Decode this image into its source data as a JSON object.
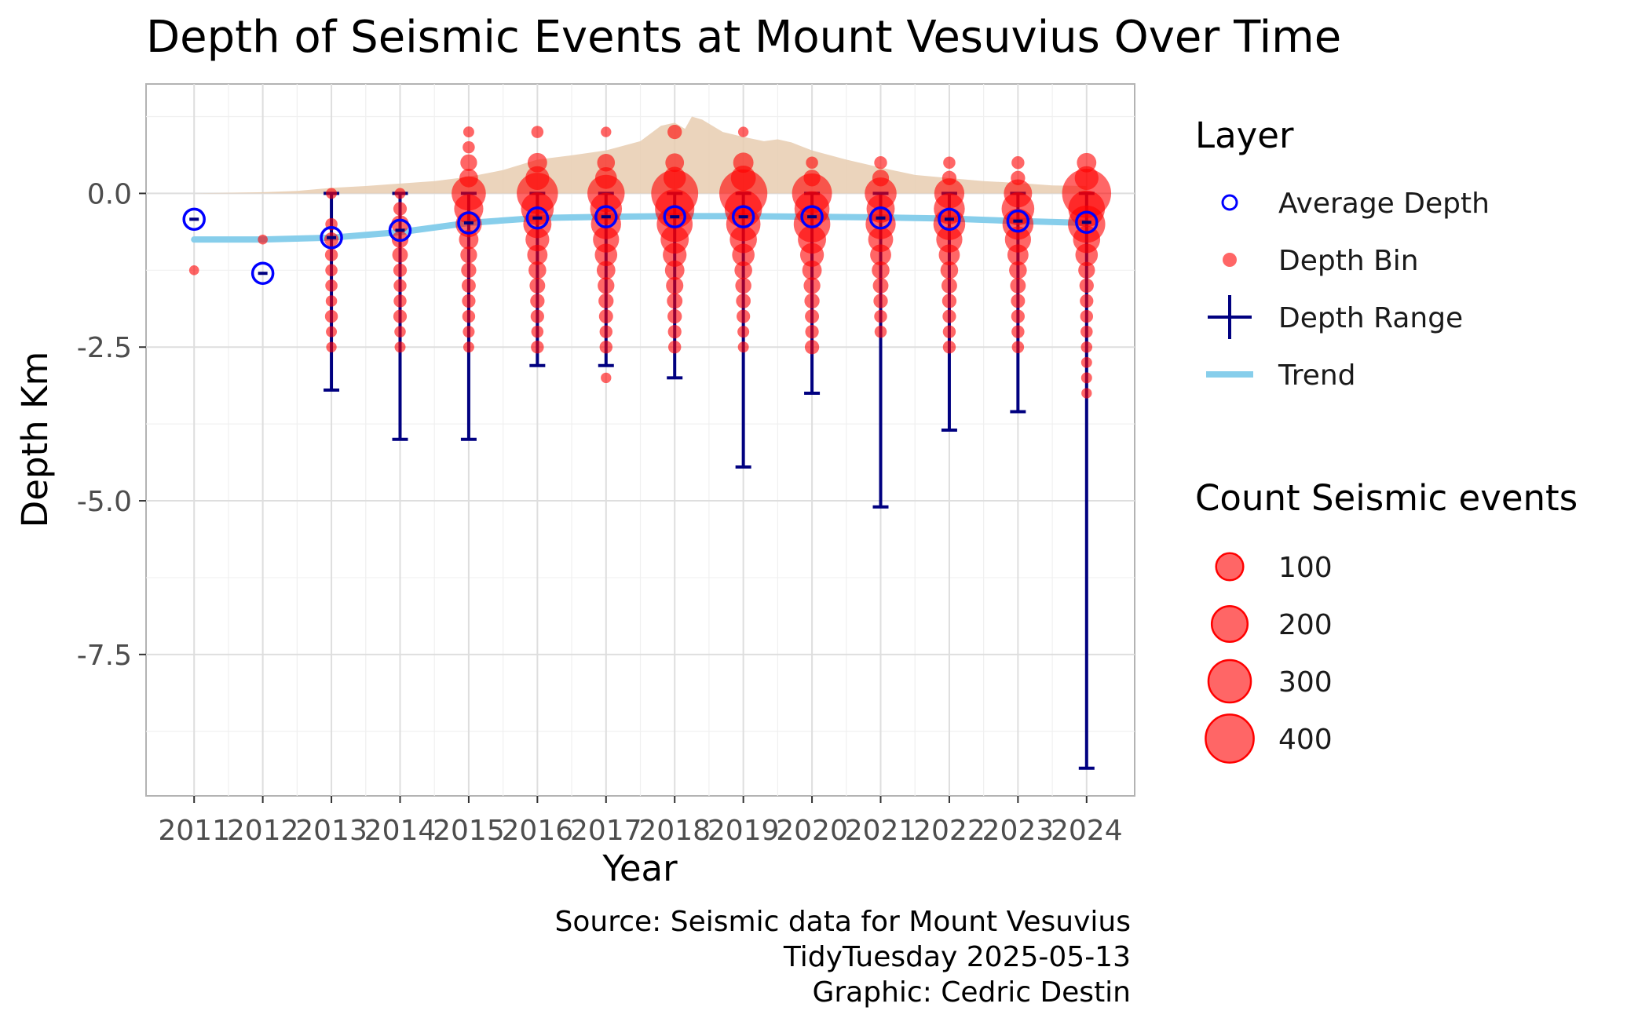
{
  "chart_data": {
    "type": "scatter",
    "title": "Depth of Seismic Events at Mount Vesuvius Over Time",
    "xlabel": "Year",
    "ylabel": "Depth Km",
    "xlim": [
      2010.3,
      2024.7
    ],
    "ylim": [
      -9.8,
      1.78
    ],
    "x_ticks": [
      2011,
      2012,
      2013,
      2014,
      2015,
      2016,
      2017,
      2018,
      2019,
      2020,
      2021,
      2022,
      2023,
      2024
    ],
    "y_ticks": [
      0.0,
      -2.5,
      -5.0,
      -7.5
    ],
    "y_tick_labels": [
      "0.0",
      "-2.5",
      "-5.0",
      "-7.5"
    ],
    "grid": true,
    "colors": {
      "average": "#0000ff",
      "bin": "#ff0000",
      "range": "#000080",
      "trend": "#87ceeb",
      "density": "#e8cdb0"
    },
    "legend_position": "right",
    "layer_legend": {
      "title": "Layer",
      "items": [
        {
          "label": "Average Depth",
          "kind": "average"
        },
        {
          "label": "Depth Bin",
          "kind": "bin"
        },
        {
          "label": "Depth Range",
          "kind": "range"
        },
        {
          "label": "Trend",
          "kind": "trend"
        }
      ]
    },
    "size_legend": {
      "title": "Count Seismic events",
      "values": [
        100,
        200,
        300,
        400
      ],
      "labels": [
        "100",
        "200",
        "300",
        "400"
      ]
    },
    "caption": [
      "Source: Seismic data for Mount Vesuvius",
      "TidyTuesday 2025-05-13",
      "Graphic: Cedric Destin"
    ],
    "depth_range": [
      {
        "year": 2013,
        "min": -3.2,
        "max": 0.0
      },
      {
        "year": 2014,
        "min": -4.0,
        "max": 0.0
      },
      {
        "year": 2015,
        "min": -4.0,
        "max": 0.0
      },
      {
        "year": 2016,
        "min": -2.8,
        "max": 0.0
      },
      {
        "year": 2017,
        "min": -2.8,
        "max": 0.0
      },
      {
        "year": 2018,
        "min": -3.0,
        "max": 0.0
      },
      {
        "year": 2019,
        "min": -4.45,
        "max": 0.0
      },
      {
        "year": 2020,
        "min": -3.25,
        "max": 0.0
      },
      {
        "year": 2021,
        "min": -5.1,
        "max": 0.0
      },
      {
        "year": 2022,
        "min": -3.85,
        "max": 0.0
      },
      {
        "year": 2023,
        "min": -3.55,
        "max": 0.0
      },
      {
        "year": 2024,
        "min": -9.35,
        "max": 0.0
      }
    ],
    "average_depth": [
      {
        "year": 2011,
        "depth": -0.42
      },
      {
        "year": 2012,
        "depth": -1.3
      },
      {
        "year": 2013,
        "depth": -0.72
      },
      {
        "year": 2014,
        "depth": -0.6
      },
      {
        "year": 2015,
        "depth": -0.48
      },
      {
        "year": 2016,
        "depth": -0.4
      },
      {
        "year": 2017,
        "depth": -0.38
      },
      {
        "year": 2018,
        "depth": -0.38
      },
      {
        "year": 2019,
        "depth": -0.38
      },
      {
        "year": 2020,
        "depth": -0.38
      },
      {
        "year": 2021,
        "depth": -0.4
      },
      {
        "year": 2022,
        "depth": -0.42
      },
      {
        "year": 2023,
        "depth": -0.45
      },
      {
        "year": 2024,
        "depth": -0.47
      }
    ],
    "trend": [
      {
        "year": 2011,
        "depth": -0.75
      },
      {
        "year": 2012,
        "depth": -0.75
      },
      {
        "year": 2013,
        "depth": -0.72
      },
      {
        "year": 2014,
        "depth": -0.63
      },
      {
        "year": 2015,
        "depth": -0.48
      },
      {
        "year": 2016,
        "depth": -0.4
      },
      {
        "year": 2017,
        "depth": -0.38
      },
      {
        "year": 2018,
        "depth": -0.37
      },
      {
        "year": 2019,
        "depth": -0.37
      },
      {
        "year": 2020,
        "depth": -0.38
      },
      {
        "year": 2021,
        "depth": -0.39
      },
      {
        "year": 2022,
        "depth": -0.41
      },
      {
        "year": 2023,
        "depth": -0.45
      },
      {
        "year": 2024,
        "depth": -0.48
      }
    ],
    "density_profile": [
      {
        "year": 2011,
        "height": 0.0
      },
      {
        "year": 2012,
        "height": 0.02
      },
      {
        "year": 2012.5,
        "height": 0.04
      },
      {
        "year": 2013,
        "height": 0.09
      },
      {
        "year": 2013.5,
        "height": 0.12
      },
      {
        "year": 2014,
        "height": 0.16
      },
      {
        "year": 2014.5,
        "height": 0.2
      },
      {
        "year": 2015,
        "height": 0.27
      },
      {
        "year": 2015.5,
        "height": 0.38
      },
      {
        "year": 2016,
        "height": 0.55
      },
      {
        "year": 2016.5,
        "height": 0.62
      },
      {
        "year": 2017,
        "height": 0.7
      },
      {
        "year": 2017.5,
        "height": 0.85
      },
      {
        "year": 2017.8,
        "height": 1.1
      },
      {
        "year": 2018,
        "height": 1.15
      },
      {
        "year": 2018.15,
        "height": 1.05
      },
      {
        "year": 2018.25,
        "height": 1.25
      },
      {
        "year": 2018.4,
        "height": 1.2
      },
      {
        "year": 2018.7,
        "height": 1.0
      },
      {
        "year": 2019,
        "height": 0.92
      },
      {
        "year": 2019.3,
        "height": 0.85
      },
      {
        "year": 2019.5,
        "height": 0.88
      },
      {
        "year": 2019.7,
        "height": 0.83
      },
      {
        "year": 2020,
        "height": 0.7
      },
      {
        "year": 2020.5,
        "height": 0.55
      },
      {
        "year": 2021,
        "height": 0.42
      },
      {
        "year": 2021.5,
        "height": 0.3
      },
      {
        "year": 2022,
        "height": 0.25
      },
      {
        "year": 2022.5,
        "height": 0.2
      },
      {
        "year": 2023,
        "height": 0.17
      },
      {
        "year": 2023.5,
        "height": 0.13
      },
      {
        "year": 2024,
        "height": 0.12
      }
    ],
    "depth_bins": [
      {
        "year": 2011,
        "depth": -1.25,
        "count": 3
      },
      {
        "year": 2012,
        "depth": -0.75,
        "count": 3
      },
      {
        "year": 2013,
        "depth": 0.0,
        "count": 5
      },
      {
        "year": 2013,
        "depth": -0.5,
        "count": 8
      },
      {
        "year": 2013,
        "depth": -0.75,
        "count": 15
      },
      {
        "year": 2013,
        "depth": -1.0,
        "count": 10
      },
      {
        "year": 2013,
        "depth": -1.25,
        "count": 8
      },
      {
        "year": 2013,
        "depth": -1.5,
        "count": 8
      },
      {
        "year": 2013,
        "depth": -1.75,
        "count": 6
      },
      {
        "year": 2013,
        "depth": -2.0,
        "count": 10
      },
      {
        "year": 2013,
        "depth": -2.25,
        "count": 5
      },
      {
        "year": 2013,
        "depth": -2.5,
        "count": 4
      },
      {
        "year": 2014,
        "depth": 0.0,
        "count": 5
      },
      {
        "year": 2014,
        "depth": -0.25,
        "count": 12
      },
      {
        "year": 2014,
        "depth": -0.5,
        "count": 30
      },
      {
        "year": 2014,
        "depth": -0.75,
        "count": 25
      },
      {
        "year": 2014,
        "depth": -1.0,
        "count": 20
      },
      {
        "year": 2014,
        "depth": -1.25,
        "count": 12
      },
      {
        "year": 2014,
        "depth": -1.5,
        "count": 10
      },
      {
        "year": 2014,
        "depth": -1.75,
        "count": 10
      },
      {
        "year": 2014,
        "depth": -2.0,
        "count": 12
      },
      {
        "year": 2014,
        "depth": -2.25,
        "count": 6
      },
      {
        "year": 2014,
        "depth": -2.5,
        "count": 5
      },
      {
        "year": 2015,
        "depth": 1.0,
        "count": 5
      },
      {
        "year": 2015,
        "depth": 0.75,
        "count": 8
      },
      {
        "year": 2015,
        "depth": 0.5,
        "count": 25
      },
      {
        "year": 2015,
        "depth": 0.25,
        "count": 35
      },
      {
        "year": 2015,
        "depth": 0.0,
        "count": 180
      },
      {
        "year": 2015,
        "depth": -0.25,
        "count": 120
      },
      {
        "year": 2015,
        "depth": -0.5,
        "count": 90
      },
      {
        "year": 2015,
        "depth": -0.75,
        "count": 40
      },
      {
        "year": 2015,
        "depth": -1.0,
        "count": 25
      },
      {
        "year": 2015,
        "depth": -1.25,
        "count": 18
      },
      {
        "year": 2015,
        "depth": -1.5,
        "count": 14
      },
      {
        "year": 2015,
        "depth": -1.75,
        "count": 12
      },
      {
        "year": 2015,
        "depth": -2.0,
        "count": 10
      },
      {
        "year": 2015,
        "depth": -2.25,
        "count": 7
      },
      {
        "year": 2015,
        "depth": -2.5,
        "count": 5
      },
      {
        "year": 2016,
        "depth": 1.0,
        "count": 8
      },
      {
        "year": 2016,
        "depth": 0.5,
        "count": 40
      },
      {
        "year": 2016,
        "depth": 0.25,
        "count": 70
      },
      {
        "year": 2016,
        "depth": 0.0,
        "count": 280
      },
      {
        "year": 2016,
        "depth": -0.25,
        "count": 160
      },
      {
        "year": 2016,
        "depth": -0.5,
        "count": 110
      },
      {
        "year": 2016,
        "depth": -0.75,
        "count": 70
      },
      {
        "year": 2016,
        "depth": -1.0,
        "count": 45
      },
      {
        "year": 2016,
        "depth": -1.25,
        "count": 30
      },
      {
        "year": 2016,
        "depth": -1.5,
        "count": 20
      },
      {
        "year": 2016,
        "depth": -1.75,
        "count": 15
      },
      {
        "year": 2016,
        "depth": -2.0,
        "count": 12
      },
      {
        "year": 2016,
        "depth": -2.25,
        "count": 8
      },
      {
        "year": 2016,
        "depth": -2.5,
        "count": 10
      },
      {
        "year": 2017,
        "depth": 1.0,
        "count": 4
      },
      {
        "year": 2017,
        "depth": 0.5,
        "count": 30
      },
      {
        "year": 2017,
        "depth": 0.25,
        "count": 55
      },
      {
        "year": 2017,
        "depth": 0.0,
        "count": 220
      },
      {
        "year": 2017,
        "depth": -0.25,
        "count": 150
      },
      {
        "year": 2017,
        "depth": -0.5,
        "count": 130
      },
      {
        "year": 2017,
        "depth": -0.75,
        "count": 90
      },
      {
        "year": 2017,
        "depth": -1.0,
        "count": 60
      },
      {
        "year": 2017,
        "depth": -1.25,
        "count": 35
      },
      {
        "year": 2017,
        "depth": -1.5,
        "count": 25
      },
      {
        "year": 2017,
        "depth": -1.75,
        "count": 18
      },
      {
        "year": 2017,
        "depth": -2.0,
        "count": 14
      },
      {
        "year": 2017,
        "depth": -2.25,
        "count": 10
      },
      {
        "year": 2017,
        "depth": -2.5,
        "count": 10
      },
      {
        "year": 2017,
        "depth": -3.0,
        "count": 4
      },
      {
        "year": 2018,
        "depth": 1.0,
        "count": 15
      },
      {
        "year": 2018,
        "depth": 0.5,
        "count": 35
      },
      {
        "year": 2018,
        "depth": 0.25,
        "count": 60
      },
      {
        "year": 2018,
        "depth": 0.0,
        "count": 380
      },
      {
        "year": 2018,
        "depth": -0.25,
        "count": 250
      },
      {
        "year": 2018,
        "depth": -0.5,
        "count": 200
      },
      {
        "year": 2018,
        "depth": -0.75,
        "count": 110
      },
      {
        "year": 2018,
        "depth": -1.0,
        "count": 70
      },
      {
        "year": 2018,
        "depth": -1.25,
        "count": 40
      },
      {
        "year": 2018,
        "depth": -1.5,
        "count": 28
      },
      {
        "year": 2018,
        "depth": -1.75,
        "count": 20
      },
      {
        "year": 2018,
        "depth": -2.0,
        "count": 15
      },
      {
        "year": 2018,
        "depth": -2.25,
        "count": 12
      },
      {
        "year": 2018,
        "depth": -2.5,
        "count": 10
      },
      {
        "year": 2019,
        "depth": 1.0,
        "count": 4
      },
      {
        "year": 2019,
        "depth": 0.5,
        "count": 45
      },
      {
        "year": 2019,
        "depth": 0.25,
        "count": 80
      },
      {
        "year": 2019,
        "depth": 0.0,
        "count": 400
      },
      {
        "year": 2019,
        "depth": -0.25,
        "count": 220
      },
      {
        "year": 2019,
        "depth": -0.5,
        "count": 180
      },
      {
        "year": 2019,
        "depth": -0.75,
        "count": 100
      },
      {
        "year": 2019,
        "depth": -1.0,
        "count": 60
      },
      {
        "year": 2019,
        "depth": -1.25,
        "count": 30
      },
      {
        "year": 2019,
        "depth": -1.5,
        "count": 22
      },
      {
        "year": 2019,
        "depth": -1.75,
        "count": 16
      },
      {
        "year": 2019,
        "depth": -2.0,
        "count": 12
      },
      {
        "year": 2019,
        "depth": -2.25,
        "count": 7
      },
      {
        "year": 2019,
        "depth": -2.5,
        "count": 5
      },
      {
        "year": 2020,
        "depth": 0.5,
        "count": 8
      },
      {
        "year": 2020,
        "depth": 0.25,
        "count": 25
      },
      {
        "year": 2020,
        "depth": 0.0,
        "count": 260
      },
      {
        "year": 2020,
        "depth": -0.25,
        "count": 190
      },
      {
        "year": 2020,
        "depth": -0.5,
        "count": 210
      },
      {
        "year": 2020,
        "depth": -0.75,
        "count": 110
      },
      {
        "year": 2020,
        "depth": -1.0,
        "count": 70
      },
      {
        "year": 2020,
        "depth": -1.25,
        "count": 40
      },
      {
        "year": 2020,
        "depth": -1.5,
        "count": 25
      },
      {
        "year": 2020,
        "depth": -1.75,
        "count": 18
      },
      {
        "year": 2020,
        "depth": -2.0,
        "count": 14
      },
      {
        "year": 2020,
        "depth": -2.25,
        "count": 12
      },
      {
        "year": 2020,
        "depth": -2.5,
        "count": 15
      },
      {
        "year": 2021,
        "depth": 0.5,
        "count": 10
      },
      {
        "year": 2021,
        "depth": 0.25,
        "count": 25
      },
      {
        "year": 2021,
        "depth": 0.0,
        "count": 150
      },
      {
        "year": 2021,
        "depth": -0.25,
        "count": 110
      },
      {
        "year": 2021,
        "depth": -0.5,
        "count": 130
      },
      {
        "year": 2021,
        "depth": -0.75,
        "count": 80
      },
      {
        "year": 2021,
        "depth": -1.0,
        "count": 50
      },
      {
        "year": 2021,
        "depth": -1.25,
        "count": 30
      },
      {
        "year": 2021,
        "depth": -1.5,
        "count": 20
      },
      {
        "year": 2021,
        "depth": -1.75,
        "count": 15
      },
      {
        "year": 2021,
        "depth": -2.0,
        "count": 10
      },
      {
        "year": 2021,
        "depth": -2.25,
        "count": 8
      },
      {
        "year": 2022,
        "depth": 0.5,
        "count": 8
      },
      {
        "year": 2022,
        "depth": 0.25,
        "count": 15
      },
      {
        "year": 2022,
        "depth": 0.0,
        "count": 130
      },
      {
        "year": 2022,
        "depth": -0.25,
        "count": 140
      },
      {
        "year": 2022,
        "depth": -0.5,
        "count": 150
      },
      {
        "year": 2022,
        "depth": -0.75,
        "count": 90
      },
      {
        "year": 2022,
        "depth": -1.0,
        "count": 50
      },
      {
        "year": 2022,
        "depth": -1.25,
        "count": 30
      },
      {
        "year": 2022,
        "depth": -1.5,
        "count": 20
      },
      {
        "year": 2022,
        "depth": -1.75,
        "count": 15
      },
      {
        "year": 2022,
        "depth": -2.0,
        "count": 12
      },
      {
        "year": 2022,
        "depth": -2.25,
        "count": 10
      },
      {
        "year": 2022,
        "depth": -2.5,
        "count": 10
      },
      {
        "year": 2023,
        "depth": 0.5,
        "count": 10
      },
      {
        "year": 2023,
        "depth": 0.25,
        "count": 15
      },
      {
        "year": 2023,
        "depth": 0.0,
        "count": 110
      },
      {
        "year": 2023,
        "depth": -0.25,
        "count": 160
      },
      {
        "year": 2023,
        "depth": -0.5,
        "count": 140
      },
      {
        "year": 2023,
        "depth": -0.75,
        "count": 90
      },
      {
        "year": 2023,
        "depth": -1.0,
        "count": 50
      },
      {
        "year": 2023,
        "depth": -1.25,
        "count": 30
      },
      {
        "year": 2023,
        "depth": -1.5,
        "count": 20
      },
      {
        "year": 2023,
        "depth": -1.75,
        "count": 14
      },
      {
        "year": 2023,
        "depth": -2.0,
        "count": 12
      },
      {
        "year": 2023,
        "depth": -2.25,
        "count": 10
      },
      {
        "year": 2023,
        "depth": -2.5,
        "count": 8
      },
      {
        "year": 2024,
        "depth": 0.5,
        "count": 40
      },
      {
        "year": 2024,
        "depth": 0.25,
        "count": 70
      },
      {
        "year": 2024,
        "depth": 0.0,
        "count": 420
      },
      {
        "year": 2024,
        "depth": -0.25,
        "count": 210
      },
      {
        "year": 2024,
        "depth": -0.5,
        "count": 220
      },
      {
        "year": 2024,
        "depth": -0.75,
        "count": 100
      },
      {
        "year": 2024,
        "depth": -1.0,
        "count": 60
      },
      {
        "year": 2024,
        "depth": -1.25,
        "count": 25
      },
      {
        "year": 2024,
        "depth": -1.5,
        "count": 15
      },
      {
        "year": 2024,
        "depth": -1.75,
        "count": 12
      },
      {
        "year": 2024,
        "depth": -2.0,
        "count": 10
      },
      {
        "year": 2024,
        "depth": -2.25,
        "count": 8
      },
      {
        "year": 2024,
        "depth": -2.5,
        "count": 6
      },
      {
        "year": 2024,
        "depth": -2.75,
        "count": 5
      },
      {
        "year": 2024,
        "depth": -3.0,
        "count": 5
      },
      {
        "year": 2024,
        "depth": -3.25,
        "count": 4
      }
    ]
  }
}
